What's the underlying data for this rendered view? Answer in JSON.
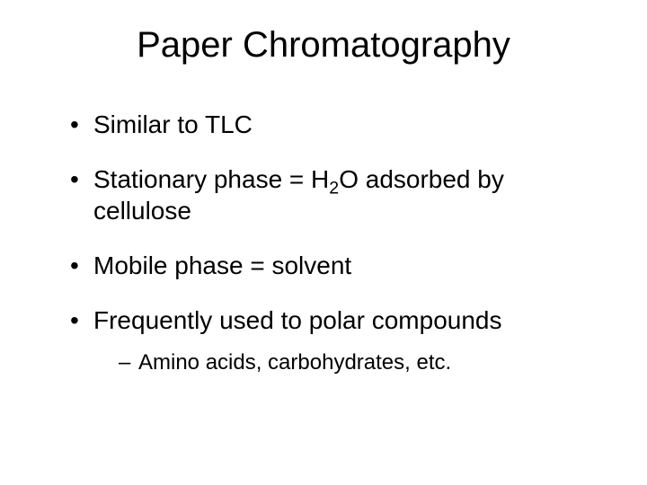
{
  "background_color": "#ffffff",
  "text_color": "#000000",
  "font_family": "Arial",
  "title": {
    "text": "Paper Chromatography",
    "fontsize": 40,
    "align": "center"
  },
  "bullets": [
    {
      "text": "Similar to TLC",
      "fontsize": 28
    },
    {
      "prefix": "Stationary phase = H",
      "sub": "2",
      "suffix": "O adsorbed by cellulose",
      "fontsize": 28
    },
    {
      "text": "Mobile phase = solvent",
      "fontsize": 28
    },
    {
      "text": "Frequently used to polar compounds",
      "fontsize": 28,
      "children": [
        {
          "text": "Amino acids, carbohydrates, etc.",
          "fontsize": 24
        }
      ]
    }
  ]
}
